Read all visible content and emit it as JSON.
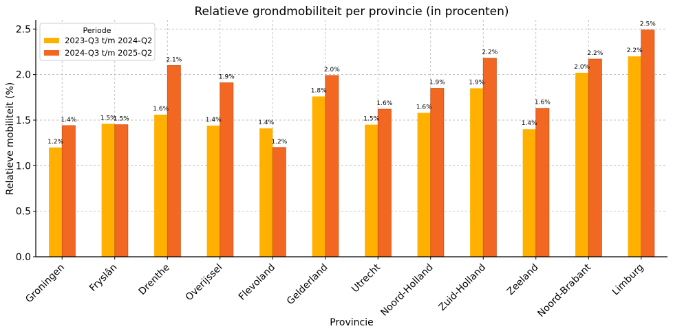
{
  "chart_data": {
    "type": "bar",
    "title": "Relatieve grondmobiliteit per provincie (in procenten)",
    "xlabel": "Provincie",
    "ylabel": "Relatieve mobiliteit (%)",
    "ylim": [
      0,
      2.6
    ],
    "yticks": [
      0.0,
      0.5,
      1.0,
      1.5,
      2.0,
      2.5
    ],
    "ytick_labels": [
      "0.0",
      "0.5",
      "1.0",
      "1.5",
      "2.0",
      "2.5"
    ],
    "grid": true,
    "legend": {
      "title": "Periode",
      "position": "top-left"
    },
    "categories": [
      "Groningen",
      "Fryslân",
      "Drenthe",
      "Overijssel",
      "Flevoland",
      "Gelderland",
      "Utrecht",
      "Noord-Holland",
      "Zuid-Holland",
      "Zeeland",
      "Noord-Brabant",
      "Limburg"
    ],
    "series": [
      {
        "name": "2023-Q3 t/m 2024-Q2",
        "color": "#FFB000",
        "values": [
          1.2,
          1.46,
          1.56,
          1.44,
          1.41,
          1.76,
          1.45,
          1.58,
          1.85,
          1.4,
          2.02,
          2.2
        ],
        "labels": [
          "1.2%",
          "1.5%",
          "1.6%",
          "1.4%",
          "1.4%",
          "1.8%",
          "1.5%",
          "1.6%",
          "1.9%",
          "1.4%",
          "2.0%",
          "2.2%"
        ]
      },
      {
        "name": "2024-Q3 t/m 2025-Q2",
        "color": "#F26722",
        "values": [
          1.44,
          1.45,
          2.1,
          1.91,
          1.2,
          1.99,
          1.62,
          1.85,
          2.18,
          1.63,
          2.17,
          2.49
        ],
        "labels": [
          "1.4%",
          "1.5%",
          "2.1%",
          "1.9%",
          "1.2%",
          "2.0%",
          "1.6%",
          "1.9%",
          "2.2%",
          "1.6%",
          "2.2%",
          "2.5%"
        ]
      }
    ]
  }
}
